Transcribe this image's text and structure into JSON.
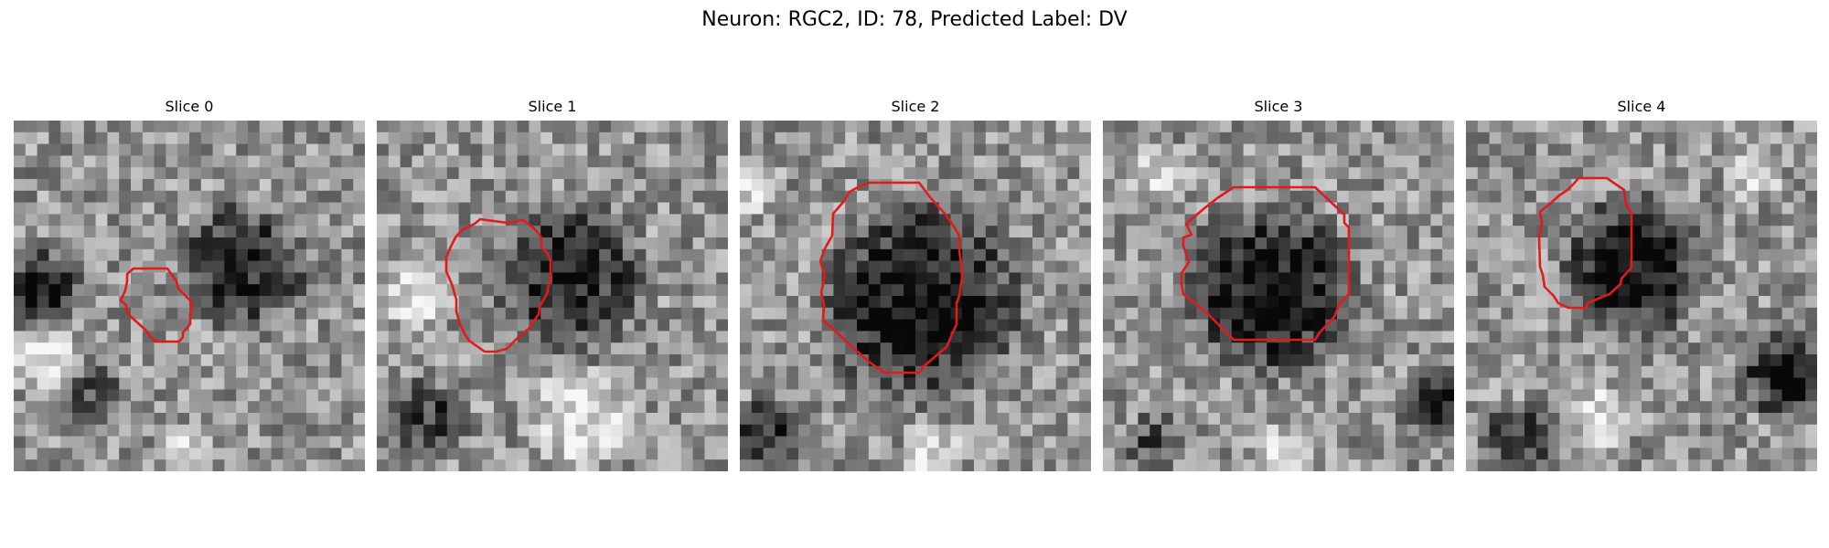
{
  "figure": {
    "title": "Neuron: RGC2, ID: 78, Predicted Label: DV"
  },
  "panels": [
    {
      "title": "Slice 0"
    },
    {
      "title": "Slice 1"
    },
    {
      "title": "Slice 2"
    },
    {
      "title": "Slice 3"
    },
    {
      "title": "Slice 4"
    }
  ],
  "colors": {
    "outline": "#e31a1c",
    "background": "#ffffff"
  }
}
